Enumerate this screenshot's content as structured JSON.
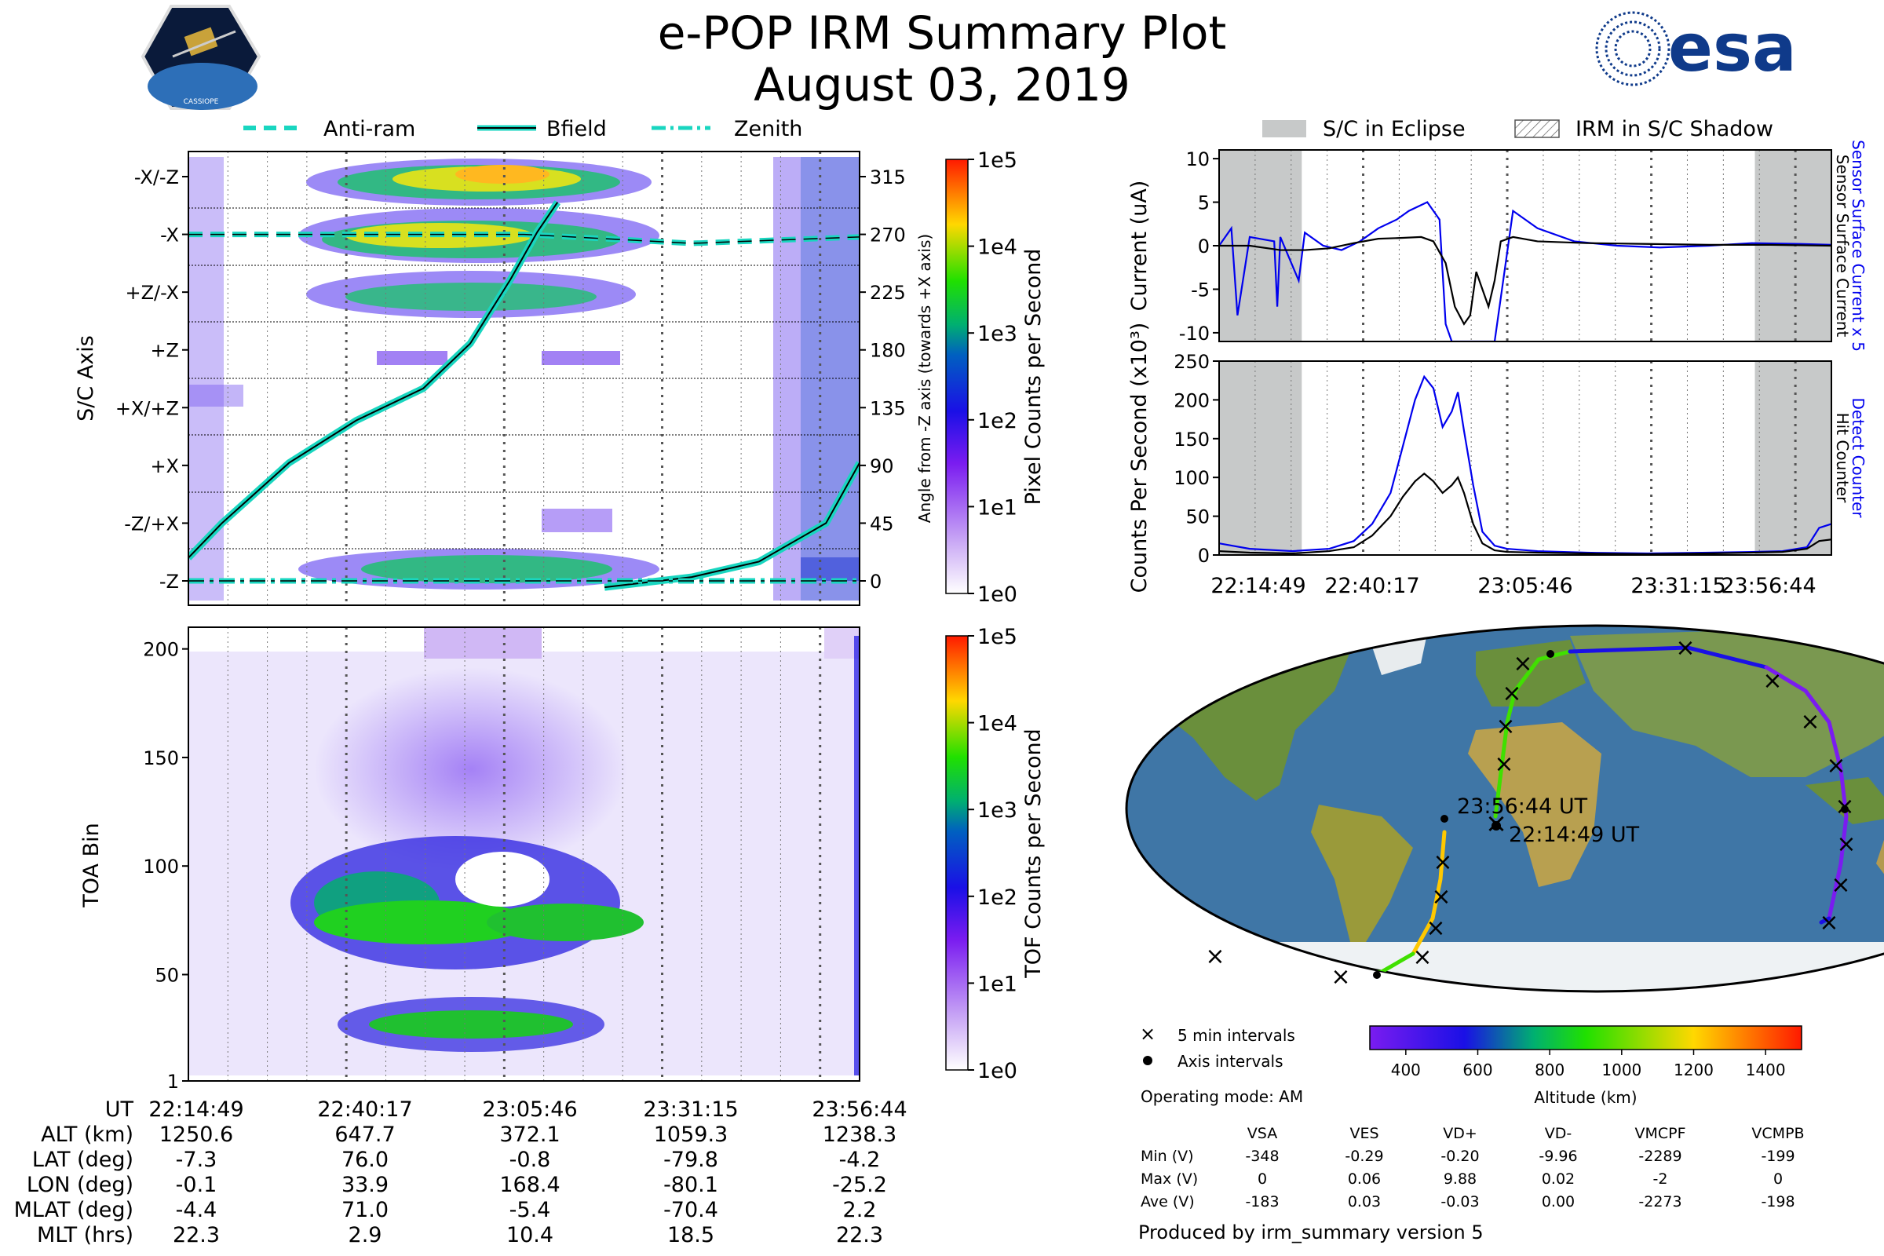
{
  "title": {
    "line1": "e-POP IRM Summary Plot",
    "line2": "August 03, 2019"
  },
  "logos": {
    "left_text": "CASSIOPE",
    "right_text": "esa"
  },
  "legend_top_left": [
    "Anti-ram",
    "Bfield",
    "Zenith"
  ],
  "legend_top_right": [
    "S/C in Eclipse",
    "IRM in S/C Shadow"
  ],
  "colors": {
    "cyan": "#19d6c0",
    "blue": "#0000ee",
    "gray": "#c7c9c9"
  },
  "time_ticks": [
    "22:14:49",
    "22:40:17",
    "23:05:46",
    "23:31:15",
    "23:56:44"
  ],
  "chart_data": [
    {
      "type": "heatmap",
      "name": "pixel_counts",
      "ylabel": "S/C Axis",
      "y_categories": [
        "-X/-Z",
        "-X",
        "+Z/-X",
        "+Z",
        "+X/+Z",
        "+X",
        "-Z/+X",
        "-Z"
      ],
      "right_axis_label": "Angle from -Z axis (towards +X axis)",
      "right_ticks": [
        315,
        270,
        225,
        180,
        135,
        90,
        45,
        0
      ],
      "colorbar_label": "Pixel Counts per Second",
      "colorbar_ticks": [
        "1e0",
        "1e1",
        "1e2",
        "1e3",
        "1e4",
        "1e5"
      ],
      "lines": [
        {
          "name": "Bfield",
          "style": "solid",
          "x": [
            0,
            5,
            15,
            25,
            35,
            42,
            48,
            52,
            55
          ],
          "y": [
            18,
            45,
            92,
            125,
            150,
            185,
            235,
            272,
            295
          ]
        },
        {
          "name": "Bfield",
          "style": "solid",
          "x": [
            62,
            75,
            85,
            95,
            100
          ],
          "y": [
            -5,
            3,
            15,
            45,
            92
          ]
        },
        {
          "name": "Anti-ram",
          "style": "dashed",
          "x": [
            0,
            50,
            75,
            100
          ],
          "y": [
            270,
            270,
            263,
            268
          ]
        },
        {
          "name": "Zenith",
          "style": "dashdot",
          "x": [
            0,
            100
          ],
          "y": [
            0,
            0
          ]
        }
      ]
    },
    {
      "type": "heatmap",
      "name": "tof_counts",
      "ylabel": "TOA Bin",
      "yticks": [
        1,
        50,
        100,
        150,
        200
      ],
      "ylim": [
        1,
        210
      ],
      "colorbar_label": "TOF Counts per Second",
      "colorbar_ticks": [
        "1e0",
        "1e1",
        "1e2",
        "1e3",
        "1e4",
        "1e5"
      ]
    },
    {
      "type": "line",
      "name": "sensor_current",
      "ylabel": "Current (uA)",
      "ylim": [
        -11,
        11
      ],
      "yticks": [
        10,
        5,
        0,
        -5,
        -10
      ],
      "right_labels": [
        "Sensor Surface Current x 5",
        "Sensor Surface Current"
      ],
      "eclipse_spans": [
        [
          0,
          13.5
        ],
        [
          87.5,
          100
        ]
      ],
      "series": [
        {
          "name": "Sensor Surface Current x 5",
          "color": "#0000ee",
          "x": [
            0,
            2,
            3,
            5,
            9,
            9.5,
            10,
            13,
            14,
            17,
            20,
            23,
            26,
            29,
            31,
            34,
            36,
            37,
            38,
            40,
            45,
            48,
            52,
            58,
            65,
            72,
            80,
            87,
            95,
            100
          ],
          "y": [
            0,
            2,
            -8,
            1,
            0.5,
            -7,
            1,
            -4,
            1.5,
            0,
            -0.5,
            0.5,
            2,
            3,
            4,
            5,
            3,
            -9,
            -11,
            -11,
            -11,
            4,
            2,
            0.5,
            0,
            -0.2,
            0,
            0.3,
            0.2,
            0.1
          ]
        },
        {
          "name": "Sensor Surface Current",
          "color": "#000000",
          "x": [
            0,
            5,
            10,
            14,
            18,
            22,
            26,
            30,
            33,
            35,
            37,
            38.5,
            40,
            41,
            42,
            43,
            44,
            45,
            46,
            48,
            52,
            60,
            70,
            80,
            90,
            100
          ],
          "y": [
            0,
            0,
            -0.5,
            -0.5,
            -0.3,
            0.3,
            0.8,
            0.9,
            1,
            0.5,
            -2,
            -7,
            -9,
            -8,
            -3,
            -5,
            -7,
            -4,
            0.5,
            1,
            0.5,
            0.3,
            0.2,
            0.1,
            0.1,
            0
          ]
        }
      ]
    },
    {
      "type": "line",
      "name": "detect_counter",
      "ylabel": "Counts Per Second (x10³)",
      "ylim": [
        0,
        250
      ],
      "yticks": [
        0,
        50,
        100,
        150,
        200,
        250
      ],
      "right_labels": [
        "Detect Counter",
        "Hit Counter"
      ],
      "eclipse_spans": [
        [
          0,
          13.5
        ],
        [
          87.5,
          100
        ]
      ],
      "series": [
        {
          "name": "Detect Counter",
          "color": "#0000ee",
          "x": [
            0,
            5,
            12,
            18,
            22,
            25,
            28,
            30,
            32,
            33.5,
            35,
            36.5,
            38,
            39,
            40,
            41.5,
            43,
            45,
            47,
            52,
            60,
            70,
            80,
            87,
            92,
            96,
            98,
            100
          ],
          "y": [
            15,
            8,
            5,
            8,
            18,
            40,
            80,
            140,
            200,
            230,
            215,
            165,
            185,
            210,
            160,
            90,
            30,
            12,
            8,
            5,
            3,
            2,
            3,
            4,
            5,
            10,
            35,
            40
          ]
        },
        {
          "name": "Hit Counter",
          "color": "#000000",
          "x": [
            0,
            5,
            12,
            18,
            22,
            25,
            28,
            30,
            32,
            33.5,
            35,
            36.5,
            38,
            39,
            40,
            41.5,
            43,
            45,
            47,
            52,
            60,
            70,
            80,
            87,
            92,
            96,
            98,
            100
          ],
          "y": [
            5,
            3,
            2,
            5,
            10,
            25,
            50,
            75,
            95,
            105,
            95,
            80,
            90,
            100,
            80,
            40,
            15,
            6,
            4,
            3,
            2,
            1,
            2,
            3,
            4,
            8,
            18,
            20
          ]
        }
      ]
    }
  ],
  "map": {
    "label_start": "22:14:49 UT",
    "label_end": "23:56:44 UT",
    "legend": [
      "5 min intervals",
      "Axis intervals"
    ],
    "operating_mode": "Operating mode: AM",
    "altitude_colorbar": {
      "label": "Altitude (km)",
      "ticks": [
        400,
        600,
        800,
        1000,
        1200,
        1400
      ],
      "range": [
        300,
        1500
      ]
    }
  },
  "bottom_table": {
    "row_labels": [
      "UT",
      "ALT (km)",
      "LAT (deg)",
      "LON (deg)",
      "MLAT (deg)",
      "MLT (hrs)"
    ],
    "columns": [
      [
        "22:14:49",
        "1250.6",
        "-7.3",
        "-0.1",
        "-4.4",
        "22.3"
      ],
      [
        "22:40:17",
        "647.7",
        "76.0",
        "33.9",
        "71.0",
        "2.9"
      ],
      [
        "23:05:46",
        "372.1",
        "-0.8",
        "168.4",
        "-5.4",
        "10.4"
      ],
      [
        "23:31:15",
        "1059.3",
        "-79.8",
        "-80.1",
        "-70.4",
        "18.5"
      ],
      [
        "23:56:44",
        "1238.3",
        "-4.2",
        "-25.2",
        "2.2",
        "22.3"
      ]
    ]
  },
  "voltage_table": {
    "headers": [
      "VSA",
      "VES",
      "VD+",
      "VD-",
      "VMCPF",
      "VCMPB"
    ],
    "rows": [
      {
        "label": "Min (V)",
        "values": [
          "-348",
          "-0.29",
          "-0.20",
          "-9.96",
          "-2289",
          "-199"
        ]
      },
      {
        "label": "Max (V)",
        "values": [
          "0",
          "0.06",
          "9.88",
          "0.02",
          "-2",
          "0"
        ]
      },
      {
        "label": "Ave (V)",
        "values": [
          "-183",
          "0.03",
          "-0.03",
          "0.00",
          "-2273",
          "-198"
        ]
      }
    ]
  },
  "footer": "Produced by irm_summary version 5"
}
